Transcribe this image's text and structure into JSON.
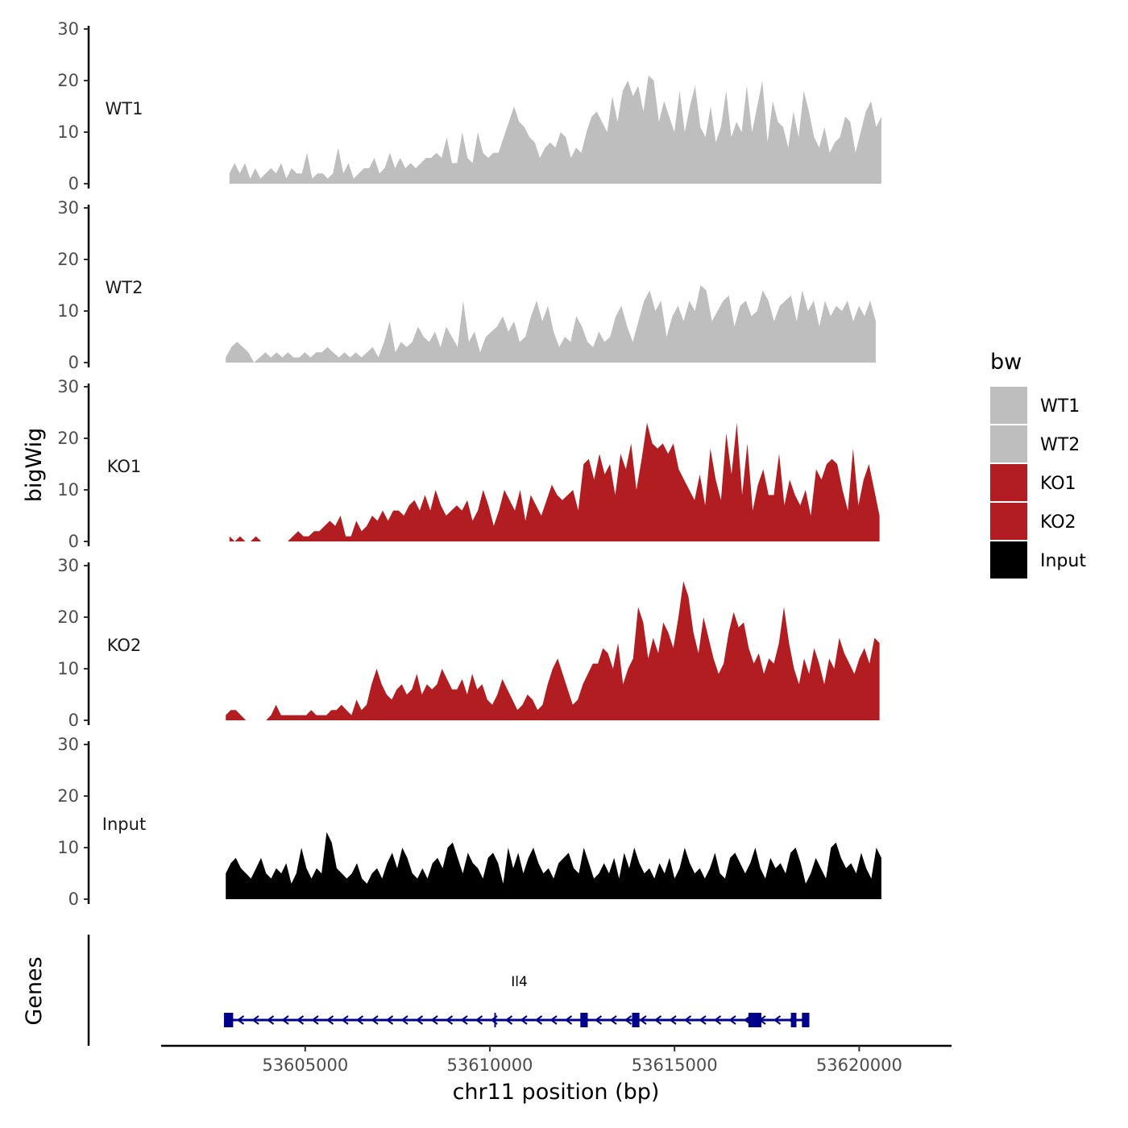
{
  "chart_data": {
    "type": "area",
    "chromosome": "chr11",
    "xlabel": "chr11 position (bp)",
    "ylabel": "bigWig",
    "genes_label": "Genes",
    "xlim": [
      53601100,
      53622500
    ],
    "ylim": [
      0,
      30
    ],
    "y_ticks": [
      "0",
      "10",
      "20",
      "30"
    ],
    "x_ticks": [
      {
        "value": 53605000,
        "label": "53605000"
      },
      {
        "value": 53610000,
        "label": "53610000"
      },
      {
        "value": 53615000,
        "label": "53615000"
      },
      {
        "value": 53620000,
        "label": "53620000"
      }
    ],
    "legend": {
      "title": "bw",
      "entries": [
        {
          "label": "WT1",
          "color": "#bebebe"
        },
        {
          "label": "WT2",
          "color": "#bebebe"
        },
        {
          "label": "KO1",
          "color": "#b21d21"
        },
        {
          "label": "KO2",
          "color": "#b21d21"
        },
        {
          "label": "Input",
          "color": "#000000"
        }
      ]
    },
    "series": [
      {
        "name": "WT1",
        "color": "#bebebe",
        "x_start": 53602950,
        "x_end": 53620600,
        "values": [
          2,
          4,
          2,
          4,
          1,
          3,
          1,
          2,
          3,
          2,
          4,
          1,
          3,
          2,
          2,
          6,
          1,
          2,
          2,
          1,
          2,
          7,
          2,
          4,
          1,
          2,
          3,
          3,
          5,
          2,
          3,
          6,
          3,
          5,
          3,
          4,
          3,
          4,
          5,
          5,
          6,
          5,
          9,
          4,
          4,
          10,
          5,
          4,
          10,
          6,
          5,
          6,
          6,
          9,
          12,
          15,
          12,
          11,
          9,
          8,
          5,
          7,
          8,
          7,
          10,
          9,
          5,
          7,
          6,
          10,
          13,
          14,
          12,
          10,
          17,
          12,
          18,
          20,
          17,
          19,
          14,
          21,
          20,
          12,
          16,
          13,
          10,
          18,
          10,
          15,
          19,
          11,
          9,
          15,
          8,
          11,
          18,
          9,
          12,
          10,
          19,
          10,
          15,
          20,
          8,
          16,
          12,
          11,
          7,
          14,
          9,
          18,
          14,
          9,
          7,
          11,
          6,
          8,
          9,
          13,
          12,
          6,
          10,
          14,
          16,
          11,
          13
        ]
      },
      {
        "name": "WT2",
        "color": "#bebebe",
        "x_start": 53602850,
        "x_end": 53620450,
        "values": [
          1,
          3,
          4,
          3,
          2,
          0,
          1,
          2,
          1,
          2,
          1,
          2,
          1,
          1,
          2,
          1,
          2,
          2,
          3,
          2,
          1,
          2,
          1,
          2,
          1,
          2,
          3,
          1,
          4,
          8,
          2,
          4,
          3,
          4,
          7,
          5,
          4,
          6,
          3,
          7,
          5,
          3,
          12,
          4,
          6,
          2,
          5,
          6,
          7,
          9,
          6,
          8,
          4,
          5,
          9,
          12,
          8,
          11,
          6,
          3,
          5,
          4,
          9,
          7,
          4,
          3,
          6,
          4,
          5,
          9,
          11,
          7,
          4,
          8,
          12,
          14,
          10,
          12,
          5,
          9,
          11,
          8,
          12,
          10,
          15,
          14,
          8,
          10,
          12,
          13,
          7,
          11,
          12,
          9,
          10,
          14,
          12,
          8,
          11,
          12,
          13,
          8,
          14,
          10,
          12,
          7,
          12,
          9,
          11,
          10,
          12,
          8,
          11,
          9,
          12,
          8
        ]
      },
      {
        "name": "KO1",
        "color": "#b21d21",
        "x_start": 53602950,
        "x_end": 53620550,
        "values": [
          1,
          0,
          1,
          0,
          0,
          1,
          0,
          0,
          0,
          0,
          0,
          0,
          1,
          2,
          1,
          1,
          2,
          2,
          3,
          4,
          3,
          5,
          1,
          1,
          4,
          2,
          3,
          5,
          4,
          6,
          4,
          6,
          6,
          5,
          7,
          8,
          6,
          9,
          6,
          10,
          7,
          5,
          6,
          7,
          6,
          8,
          4,
          6,
          10,
          7,
          3,
          6,
          10,
          8,
          6,
          10,
          4,
          9,
          7,
          5,
          8,
          11,
          9,
          8,
          9,
          10,
          6,
          15,
          16,
          12,
          17,
          13,
          15,
          9,
          17,
          14,
          19,
          10,
          16,
          23,
          19,
          18,
          19,
          17,
          19,
          14,
          12,
          10,
          8,
          13,
          7,
          18,
          12,
          8,
          21,
          13,
          23,
          9,
          19,
          6,
          11,
          14,
          9,
          9,
          17,
          7,
          12,
          9,
          7,
          10,
          5,
          14,
          12,
          15,
          16,
          15,
          10,
          6,
          18,
          7,
          12,
          15,
          10,
          5
        ]
      },
      {
        "name": "KO2",
        "color": "#b21d21",
        "x_start": 53602850,
        "x_end": 53620550,
        "values": [
          1,
          2,
          2,
          1,
          0,
          0,
          0,
          0,
          0,
          1,
          3,
          1,
          1,
          1,
          1,
          1,
          1,
          2,
          1,
          1,
          1,
          2,
          2,
          3,
          2,
          1,
          4,
          2,
          3,
          7,
          10,
          7,
          5,
          4,
          6,
          7,
          5,
          6,
          9,
          5,
          7,
          6,
          7,
          10,
          8,
          6,
          6,
          8,
          5,
          9,
          6,
          7,
          4,
          3,
          5,
          8,
          6,
          4,
          2,
          3,
          5,
          4,
          2,
          3,
          7,
          10,
          12,
          9,
          6,
          3,
          4,
          7,
          9,
          11,
          11,
          14,
          13,
          10,
          15,
          7,
          10,
          12,
          22,
          19,
          12,
          16,
          13,
          19,
          17,
          14,
          20,
          27,
          24,
          17,
          13,
          20,
          16,
          12,
          9,
          11,
          17,
          21,
          18,
          19,
          14,
          11,
          13,
          9,
          12,
          11,
          15,
          22,
          15,
          10,
          7,
          12,
          9,
          14,
          11,
          7,
          12,
          10,
          16,
          13,
          11,
          9,
          12,
          14,
          11,
          16,
          15
        ]
      },
      {
        "name": "Input",
        "color": "#000000",
        "x_start": 53602850,
        "x_end": 53620600,
        "values": [
          5,
          7,
          8,
          6,
          5,
          4,
          6,
          8,
          5,
          4,
          6,
          5,
          7,
          3,
          5,
          10,
          6,
          4,
          6,
          5,
          13,
          11,
          6,
          5,
          4,
          5,
          7,
          4,
          3,
          5,
          6,
          4,
          7,
          9,
          6,
          10,
          8,
          5,
          4,
          6,
          4,
          7,
          8,
          6,
          10,
          11,
          8,
          5,
          9,
          7,
          6,
          4,
          8,
          9,
          7,
          3,
          10,
          6,
          9,
          5,
          8,
          10,
          7,
          5,
          6,
          4,
          7,
          8,
          9,
          6,
          5,
          10,
          7,
          4,
          5,
          7,
          5,
          8,
          4,
          9,
          6,
          10,
          7,
          5,
          6,
          4,
          7,
          5,
          8,
          4,
          6,
          10,
          7,
          5,
          6,
          4,
          6,
          9,
          5,
          4,
          8,
          9,
          7,
          5,
          7,
          10,
          6,
          4,
          8,
          6,
          7,
          5,
          9,
          10,
          7,
          3,
          5,
          8,
          6,
          4,
          10,
          11,
          8,
          6,
          7,
          5,
          9,
          6,
          4,
          10,
          8
        ]
      }
    ],
    "genes": [
      {
        "name": "Il4",
        "strand": "-",
        "start": 53602900,
        "end": 53618650,
        "exons": [
          [
            53602800,
            53603050
          ],
          [
            53612450,
            53612650
          ],
          [
            53613850,
            53614050
          ],
          [
            53617000,
            53617350
          ],
          [
            53618150,
            53618300
          ],
          [
            53618450,
            53618650
          ]
        ]
      }
    ]
  }
}
